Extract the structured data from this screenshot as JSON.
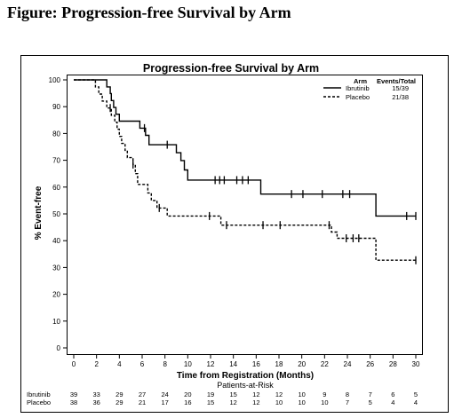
{
  "figure_title": "Figure: Progression-free Survival by Arm",
  "chart_data": {
    "type": "line",
    "title": "Progression-free Survival by Arm",
    "xlabel": "Time from Registration (Months)",
    "ylabel": "% Event-free",
    "xlim": [
      0,
      30
    ],
    "ylim": [
      0,
      100
    ],
    "x_ticks": [
      0,
      2,
      4,
      6,
      8,
      10,
      12,
      14,
      16,
      18,
      20,
      22,
      24,
      26,
      28,
      30
    ],
    "y_ticks": [
      0,
      10,
      20,
      30,
      40,
      50,
      60,
      70,
      80,
      90,
      100
    ],
    "grid": false,
    "legend": {
      "placement": "top-right",
      "arm_header": "Arm",
      "events_header": "Events/Total"
    },
    "series": [
      {
        "name": "Ibrutinib",
        "events_total": "15/39",
        "line_style": "solid",
        "points": [
          [
            0,
            100
          ],
          [
            2.9,
            100
          ],
          [
            2.9,
            97.4
          ],
          [
            3.2,
            97.4
          ],
          [
            3.2,
            94.9
          ],
          [
            3.3,
            94.9
          ],
          [
            3.3,
            92.3
          ],
          [
            3.5,
            92.3
          ],
          [
            3.5,
            89.7
          ],
          [
            3.7,
            89.7
          ],
          [
            3.7,
            87.2
          ],
          [
            4.0,
            87.2
          ],
          [
            4.0,
            84.6
          ],
          [
            5.8,
            84.6
          ],
          [
            5.8,
            82.0
          ],
          [
            6.3,
            82.0
          ],
          [
            6.3,
            79.3
          ],
          [
            6.6,
            79.3
          ],
          [
            6.6,
            75.8
          ],
          [
            9.0,
            75.8
          ],
          [
            9.0,
            72.8
          ],
          [
            9.4,
            72.8
          ],
          [
            9.4,
            69.9
          ],
          [
            9.7,
            69.9
          ],
          [
            9.7,
            66.4
          ],
          [
            10.0,
            66.4
          ],
          [
            10.0,
            62.6
          ],
          [
            16.4,
            62.6
          ],
          [
            16.4,
            57.4
          ],
          [
            26.5,
            57.4
          ],
          [
            26.5,
            49.2
          ],
          [
            30,
            49.2
          ]
        ],
        "censor_x": [
          6.2,
          8.2,
          12.4,
          12.8,
          13.2,
          14.3,
          14.8,
          15.3,
          19.1,
          20.1,
          21.8,
          23.6,
          24.2,
          29.2,
          30
        ]
      },
      {
        "name": "Placebo",
        "events_total": "21/38",
        "line_style": "dashed",
        "points": [
          [
            0,
            100
          ],
          [
            1.9,
            100
          ],
          [
            1.9,
            97.4
          ],
          [
            2.2,
            97.4
          ],
          [
            2.2,
            94.7
          ],
          [
            2.5,
            94.7
          ],
          [
            2.5,
            92.1
          ],
          [
            2.9,
            92.1
          ],
          [
            2.9,
            89.5
          ],
          [
            3.3,
            89.5
          ],
          [
            3.3,
            86.8
          ],
          [
            3.6,
            86.8
          ],
          [
            3.6,
            84.2
          ],
          [
            3.8,
            84.2
          ],
          [
            3.8,
            81.6
          ],
          [
            4.0,
            81.6
          ],
          [
            4.0,
            78.9
          ],
          [
            4.2,
            78.9
          ],
          [
            4.2,
            76.3
          ],
          [
            4.5,
            76.3
          ],
          [
            4.5,
            73.7
          ],
          [
            4.7,
            73.7
          ],
          [
            4.7,
            71.0
          ],
          [
            5.2,
            71.0
          ],
          [
            5.2,
            68.4
          ],
          [
            5.4,
            68.4
          ],
          [
            5.4,
            65.0
          ],
          [
            5.6,
            65.0
          ],
          [
            5.6,
            61.0
          ],
          [
            6.5,
            61.0
          ],
          [
            6.5,
            57.8
          ],
          [
            6.8,
            57.8
          ],
          [
            6.8,
            55.0
          ],
          [
            7.3,
            55.0
          ],
          [
            7.3,
            52.2
          ],
          [
            8.2,
            52.2
          ],
          [
            8.2,
            49.2
          ],
          [
            12.9,
            49.2
          ],
          [
            12.9,
            45.8
          ],
          [
            22.6,
            45.8
          ],
          [
            22.6,
            43.2
          ],
          [
            23.1,
            43.2
          ],
          [
            23.1,
            40.9
          ],
          [
            26.5,
            40.9
          ],
          [
            26.5,
            32.7
          ],
          [
            30,
            32.7
          ]
        ],
        "censor_x": [
          3.2,
          5.2,
          7.5,
          11.9,
          13.4,
          16.6,
          18.1,
          22.4,
          23.9,
          24.5,
          25.0,
          30
        ]
      }
    ],
    "risk_table": {
      "title": "Patients-at-Risk",
      "x": [
        0,
        2,
        4,
        6,
        8,
        10,
        12,
        14,
        16,
        18,
        20,
        22,
        24,
        26,
        28,
        30
      ],
      "rows": [
        {
          "name": "Ibrutinib",
          "counts": [
            "39",
            "33",
            "29",
            "27",
            "24",
            "20",
            "19",
            "15",
            "12",
            "12",
            "10",
            "9",
            "8",
            "7",
            "6",
            "5"
          ]
        },
        {
          "name": "Placebo",
          "counts": [
            "38",
            "36",
            "29",
            "21",
            "17",
            "16",
            "15",
            "12",
            "12",
            "10",
            "10",
            "10",
            "7",
            "5",
            "4",
            "4"
          ]
        }
      ]
    }
  }
}
